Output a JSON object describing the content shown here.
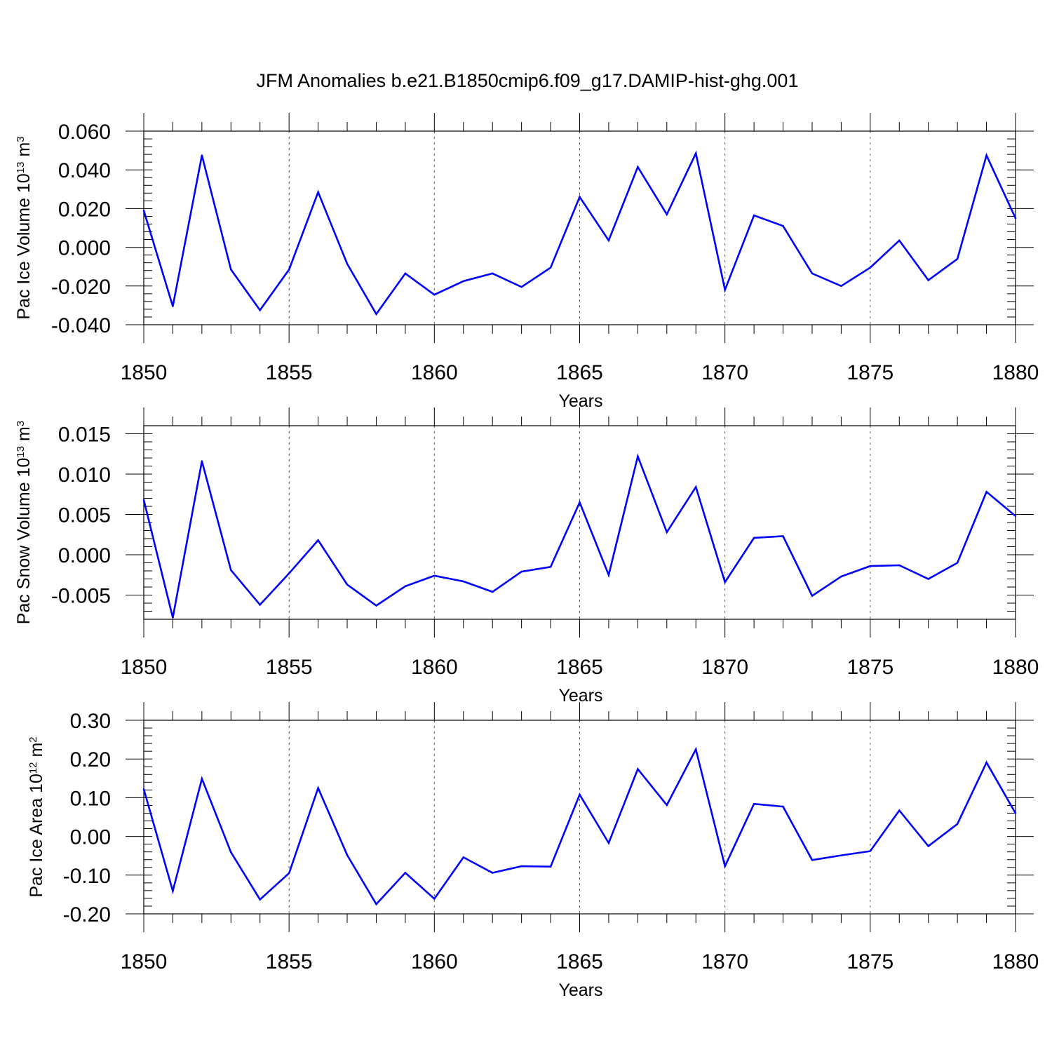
{
  "figure": {
    "title": "JFM Anomalies b.e21.B1850cmip6.f09_g17.DAMIP-hist-ghg.001",
    "line_color": "#0000ff"
  },
  "chart_data": [
    {
      "type": "line",
      "title": "JFM Anomalies b.e21.B1850cmip6.f09_g17.DAMIP-hist-ghg.001",
      "xlabel": "Years",
      "ylabel": {
        "text": "Pac Ice Volume 10",
        "sup1": "13",
        "mid": " m",
        "sup2": "3"
      },
      "xlim": [
        1850,
        1880
      ],
      "ylim": [
        -0.04,
        0.06
      ],
      "x_ticks": [
        "1850",
        "1855",
        "1860",
        "1865",
        "1870",
        "1875",
        "1880"
      ],
      "y_ticks": [
        -0.04,
        -0.02,
        0.0,
        0.02,
        0.04,
        0.06
      ],
      "y_tick_labels": [
        "-0.040",
        "-0.020",
        "0.000",
        "0.020",
        "0.040",
        "0.060"
      ],
      "y_minor_step": 0.004,
      "grid": "vertical dashed at major x ticks",
      "x": [
        1850,
        1851,
        1852,
        1853,
        1854,
        1855,
        1856,
        1857,
        1858,
        1859,
        1860,
        1861,
        1862,
        1863,
        1864,
        1865,
        1866,
        1867,
        1868,
        1869,
        1870,
        1871,
        1872,
        1873,
        1874,
        1875,
        1876,
        1877,
        1878,
        1879,
        1880
      ],
      "series": [
        {
          "name": "Pac Ice Volume",
          "values": [
            0.019,
            -0.0305,
            0.0475,
            -0.0115,
            -0.0325,
            -0.0115,
            0.0285,
            -0.0085,
            -0.0345,
            -0.0135,
            -0.0245,
            -0.0175,
            -0.0135,
            -0.0205,
            -0.0105,
            0.026,
            0.0035,
            0.0415,
            0.017,
            0.0485,
            -0.022,
            0.0165,
            0.011,
            -0.0135,
            -0.02,
            -0.0105,
            0.0035,
            -0.017,
            -0.006,
            0.0475,
            0.015
          ]
        }
      ]
    },
    {
      "type": "line",
      "xlabel": "Years",
      "ylabel": {
        "text": "Pac Snow Volume 10",
        "sup1": "13",
        "mid": " m",
        "sup2": "3"
      },
      "xlim": [
        1850,
        1880
      ],
      "ylim": [
        -0.008,
        0.016
      ],
      "x_ticks": [
        "1850",
        "1855",
        "1860",
        "1865",
        "1870",
        "1875",
        "1880"
      ],
      "y_ticks": [
        -0.005,
        0.0,
        0.005,
        0.01,
        0.015
      ],
      "y_tick_labels": [
        "-0.005",
        "0.000",
        "0.005",
        "0.010",
        "0.015"
      ],
      "y_minor_step": 0.001,
      "grid": "vertical dashed at major x ticks",
      "x": [
        1850,
        1851,
        1852,
        1853,
        1854,
        1855,
        1856,
        1857,
        1858,
        1859,
        1860,
        1861,
        1862,
        1863,
        1864,
        1865,
        1866,
        1867,
        1868,
        1869,
        1870,
        1871,
        1872,
        1873,
        1874,
        1875,
        1876,
        1877,
        1878,
        1879,
        1880
      ],
      "series": [
        {
          "name": "Pac Snow Volume",
          "values": [
            0.0068,
            -0.0078,
            0.0116,
            -0.0019,
            -0.0062,
            -0.0023,
            0.0018,
            -0.0037,
            -0.0063,
            -0.0039,
            -0.0026,
            -0.0033,
            -0.0046,
            -0.0021,
            -0.0015,
            0.0065,
            -0.0025,
            0.0122,
            0.0028,
            0.0084,
            -0.0034,
            0.0021,
            0.0023,
            -0.0051,
            -0.0027,
            -0.0014,
            -0.0013,
            -0.003,
            -0.001,
            0.0078,
            0.0048
          ]
        }
      ]
    },
    {
      "type": "line",
      "xlabel": "Years",
      "ylabel": {
        "text": "Pac Ice Area 10",
        "sup1": "12",
        "mid": " m",
        "sup2": "2"
      },
      "xlim": [
        1850,
        1880
      ],
      "ylim": [
        -0.2,
        0.3
      ],
      "x_ticks": [
        "1850",
        "1855",
        "1860",
        "1865",
        "1870",
        "1875",
        "1880"
      ],
      "y_ticks": [
        -0.2,
        -0.1,
        0.0,
        0.1,
        0.2,
        0.3
      ],
      "y_tick_labels": [
        "-0.20",
        "-0.10",
        "0.00",
        "0.10",
        "0.20",
        "0.30"
      ],
      "y_minor_step": 0.02,
      "grid": "vertical dashed at major x ticks",
      "x": [
        1850,
        1851,
        1852,
        1853,
        1854,
        1855,
        1856,
        1857,
        1858,
        1859,
        1860,
        1861,
        1862,
        1863,
        1864,
        1865,
        1866,
        1867,
        1868,
        1869,
        1870,
        1871,
        1872,
        1873,
        1874,
        1875,
        1876,
        1877,
        1878,
        1879,
        1880
      ],
      "series": [
        {
          "name": "Pac Ice Area",
          "values": [
            0.122,
            -0.141,
            0.149,
            -0.041,
            -0.163,
            -0.095,
            0.125,
            -0.048,
            -0.175,
            -0.094,
            -0.161,
            -0.054,
            -0.094,
            -0.077,
            -0.078,
            0.108,
            -0.017,
            0.174,
            0.081,
            0.225,
            -0.077,
            0.084,
            0.077,
            -0.061,
            -0.049,
            -0.038,
            0.067,
            -0.025,
            0.032,
            0.191,
            0.06
          ]
        }
      ]
    }
  ]
}
